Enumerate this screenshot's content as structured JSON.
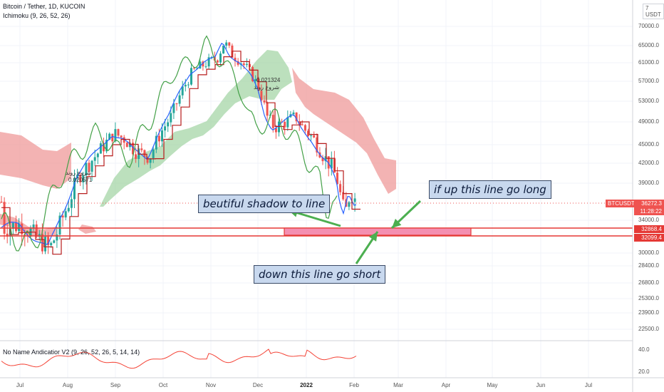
{
  "header": {
    "symbol_title": "Bitcoin / Tether, 1D, KUCOIN",
    "indicator_title": "Ichimoku (9, 26, 52, 26)",
    "lower_indicator_title": "No Name Andicatior V2 (9, 26, 52, 26, 5, 14, 14)",
    "currency": "USDT"
  },
  "price_badges": {
    "symbol": "BTCUSDT",
    "last_price": "36272.3",
    "countdown": "11:28:22",
    "level_upper": "32868.4",
    "level_lower": "32099.4"
  },
  "annotations": {
    "shadow": "beutiful shadow to line",
    "long": "if up this line go long",
    "short": "down this line go short",
    "tag_left_1": "شروع روند",
    "tag_left_2": "0.020571",
    "tag_right_1": "0.021324",
    "tag_right_2": "شروع روند"
  },
  "colors": {
    "candle_up": "#26a69a",
    "candle_down": "#ef5350",
    "tenkan": "#2962ff",
    "kijun": "#b71c1c",
    "chikou": "#43a047",
    "cloud_bull": "#a5d6a7",
    "cloud_bear": "#ef9a9a",
    "level_line": "#e53935",
    "arrow": "#4caf50",
    "lower_line": "#f44336"
  },
  "chart_data": {
    "type": "candlestick",
    "y_axis": {
      "min": 21000,
      "max": 74000,
      "ticks": [
        70000.0,
        65000.0,
        61000.0,
        57000.0,
        53000.0,
        49000.0,
        45000.0,
        42000.0,
        39000.0,
        34000.0,
        30000.0,
        28400.0,
        26800.0,
        25300.0,
        23900.0,
        22500.0
      ],
      "tick_labels": [
        "70000.0",
        "65000.0",
        "61000.0",
        "57000.0",
        "53000.0",
        "49000.0",
        "45000.0",
        "42000.0",
        "39000.0",
        "34000.0",
        "30000.0",
        "28400.0",
        "26800.0",
        "25300.0",
        "23900.0",
        "22500.0"
      ],
      "top_label": "7 USDT"
    },
    "x_axis": {
      "ticks": [
        "Jul",
        "Aug",
        "Sep",
        "Oct",
        "Nov",
        "Dec",
        "2022",
        "Feb",
        "Mar",
        "Apr",
        "May",
        "Jun",
        "Jul"
      ]
    },
    "levels": [
      32868.4,
      32099.4
    ],
    "last_price": 36272.3,
    "lower_indicator": {
      "ticks": [
        40.0,
        20.0
      ],
      "tick_labels": [
        "40.0",
        "20.0"
      ]
    }
  }
}
